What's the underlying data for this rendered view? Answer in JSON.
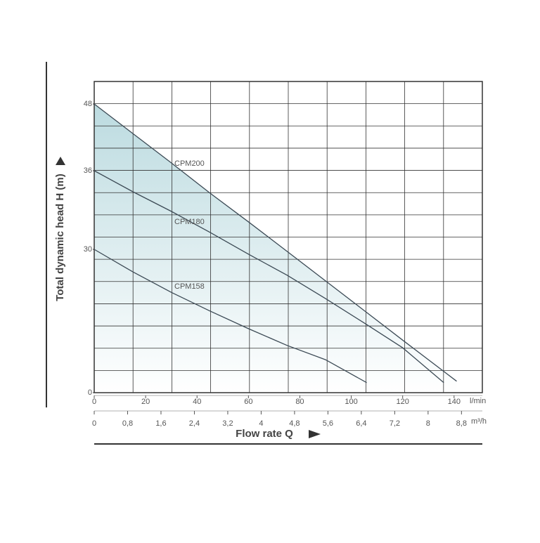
{
  "chart_data": {
    "type": "line",
    "ylabel": "Total dynamic head   H (m)",
    "xlabel": "Flow rate  Q",
    "xunit": "l/min",
    "x2unit": "m³/h",
    "xlim": [
      0,
      151
    ],
    "xticks": [
      0,
      20,
      40,
      60,
      80,
      100,
      120,
      140
    ],
    "x2lim": [
      0,
      9.3
    ],
    "x2ticks": [
      0,
      {
        "value": 0.8,
        "label": "0,8"
      },
      {
        "value": 1.6,
        "label": "1,6"
      },
      {
        "value": 2.4,
        "label": "2,4"
      },
      {
        "value": 3.2,
        "label": "3,2"
      },
      4,
      {
        "value": 4.8,
        "label": "4,8"
      },
      {
        "value": 5.6,
        "label": "5,6"
      },
      {
        "value": 6.4,
        "label": "6,4"
      },
      {
        "value": 7.2,
        "label": "7,2"
      },
      8,
      {
        "value": 8.8,
        "label": "8,8"
      }
    ],
    "ylim": [
      0,
      52
    ],
    "yticks": [
      0,
      30,
      36,
      48
    ],
    "grid": true,
    "fill_color": "#bcdbe0",
    "series": [
      {
        "name": "CPM200",
        "color": "#3c4a55",
        "x": [
          0,
          15,
          30,
          45,
          60,
          75,
          90,
          105,
          120,
          141
        ],
        "values": [
          48,
          42.7,
          37.4,
          34.3,
          32.1,
          29.6,
          23.4,
          17.2,
          11.0,
          2.4
        ]
      },
      {
        "name": "CPM180",
        "color": "#3c4a55",
        "x": [
          0,
          15,
          30,
          45,
          60,
          75,
          90,
          105,
          120,
          136
        ],
        "values": [
          36,
          34.4,
          32.9,
          31.3,
          29.0,
          24.6,
          19.7,
          14.6,
          9.4,
          2.1
        ]
      },
      {
        "name": "CPM158",
        "color": "#3c4a55",
        "x": [
          0,
          15,
          30,
          45,
          60,
          75,
          90,
          106
        ],
        "values": [
          30,
          25.3,
          21.0,
          17.1,
          13.4,
          9.9,
          6.9,
          2.1
        ]
      }
    ]
  }
}
